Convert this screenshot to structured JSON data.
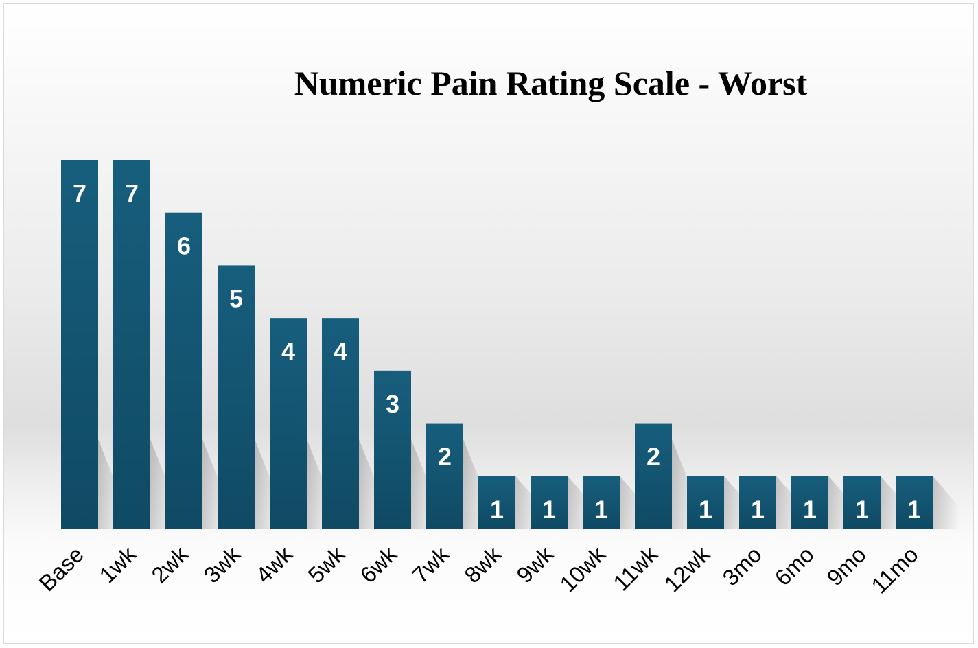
{
  "chart_data": {
    "type": "bar",
    "title": "Numeric Pain Rating Scale - Worst",
    "xlabel": "",
    "ylabel": "",
    "categories": [
      "Base",
      "1wk",
      "2wk",
      "3wk",
      "4wk",
      "5wk",
      "6wk",
      "7wk",
      "8wk",
      "9wk",
      "10wk",
      "11wk",
      "12wk",
      "3mo",
      "6mo",
      "9mo",
      "11mo"
    ],
    "values": [
      7,
      7,
      6,
      5,
      4,
      4,
      3,
      2,
      1,
      1,
      1,
      2,
      1,
      1,
      1,
      1,
      1
    ],
    "ylim": [
      0,
      7
    ],
    "grid": false,
    "legend": "none",
    "data_labels": "inside-top",
    "bar_color": "#175e7d",
    "bar_color_dark": "#0f4a64"
  }
}
